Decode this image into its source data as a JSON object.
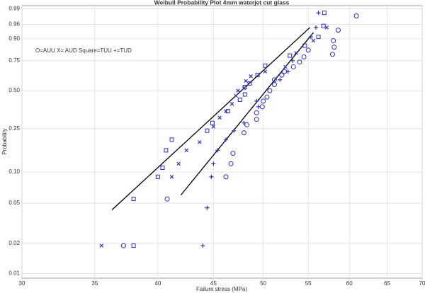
{
  "chart_data": {
    "type": "scatter",
    "title": "Weibull Probability Plot 4mm waterjet cut glass",
    "annotation": "O=AUU X= AUD Square=TUU +=TUD",
    "x_label": "Failure stress (MPa)",
    "y_label": "Probability",
    "x_scale": "log",
    "y_scale": "weibull",
    "grid": true,
    "xlim": [
      30,
      70
    ],
    "xticks": [
      30,
      35,
      40,
      45,
      50,
      55,
      60,
      65,
      70
    ],
    "ylim": [
      0.009,
      0.993
    ],
    "yticks": [
      0.01,
      0.02,
      0.05,
      {
        "value": 0.1,
        "label": "0.10"
      },
      0.25,
      {
        "value": 0.5,
        "label": "0.50"
      },
      0.75,
      {
        "value": 0.9,
        "label": "0.90"
      },
      0.96,
      0.99
    ],
    "series": [
      {
        "marker": "circle",
        "color": "#2b2bd0",
        "x": [
          37.2,
          40.8,
          46.2,
          46.7,
          46.9,
          48.0,
          48.3,
          49.3,
          49.3,
          49.9,
          50.0,
          50.4,
          50.7,
          51.2,
          51.2,
          52.0,
          52.3,
          53.3,
          54.0,
          54.5,
          55.0,
          57.9,
          58.1,
          58.0,
          58.6,
          60.9
        ],
        "values": [
          0.019,
          0.055,
          0.09,
          0.12,
          0.15,
          0.23,
          0.27,
          0.3,
          0.34,
          0.38,
          0.42,
          0.45,
          0.5,
          0.55,
          0.59,
          0.63,
          0.66,
          0.7,
          0.74,
          0.78,
          0.83,
          0.8,
          0.85,
          0.89,
          0.94,
          0.98
        ]
      },
      {
        "marker": "x",
        "color": "#2b2bd0",
        "x": [
          35.5,
          41.2,
          41.8,
          42.5,
          43.7,
          45.0,
          45.6,
          46.2,
          46.8,
          47.2,
          47.4,
          48.0,
          48.2,
          48.7,
          50.2,
          52.4,
          53.6,
          55.6,
          57.2
        ],
        "values": [
          0.019,
          0.09,
          0.12,
          0.16,
          0.19,
          0.26,
          0.31,
          0.35,
          0.4,
          0.46,
          0.5,
          0.52,
          0.58,
          0.62,
          0.66,
          0.7,
          0.81,
          0.89,
          0.95
        ]
      },
      {
        "marker": "square",
        "color": "#2b2bd0",
        "x": [
          38.0,
          38.0,
          40.0,
          40.4,
          40.7,
          41.2,
          44.4,
          44.9,
          46.4,
          47.6,
          48.1,
          48.1,
          48.6,
          49.4,
          50.2,
          52.9,
          54.6,
          56.2,
          56.8,
          56.9
        ],
        "values": [
          0.019,
          0.055,
          0.09,
          0.11,
          0.16,
          0.2,
          0.24,
          0.28,
          0.35,
          0.43,
          0.47,
          0.53,
          0.56,
          0.63,
          0.71,
          0.79,
          0.86,
          0.91,
          0.955,
          0.985
        ]
      },
      {
        "marker": "plus",
        "color": "#2b2bd0",
        "x": [
          44.0,
          44.4,
          44.8,
          45.0,
          45.4,
          46.2,
          47.0,
          48.0,
          49.5,
          49.3,
          51.8,
          52.7,
          53.2,
          55.3,
          55.9,
          56.2
        ],
        "values": [
          0.019,
          0.045,
          0.09,
          0.12,
          0.16,
          0.2,
          0.24,
          0.28,
          0.38,
          0.42,
          0.59,
          0.66,
          0.75,
          0.91,
          0.95,
          0.985
        ]
      }
    ],
    "fit_lines": [
      {
        "color": "#000000",
        "x": [
          36.3,
          55.2
        ],
        "values": [
          0.043,
          0.95
        ]
      },
      {
        "color": "#000000",
        "x": [
          42.0,
          55.6
        ],
        "values": [
          0.06,
          0.93
        ]
      }
    ]
  }
}
